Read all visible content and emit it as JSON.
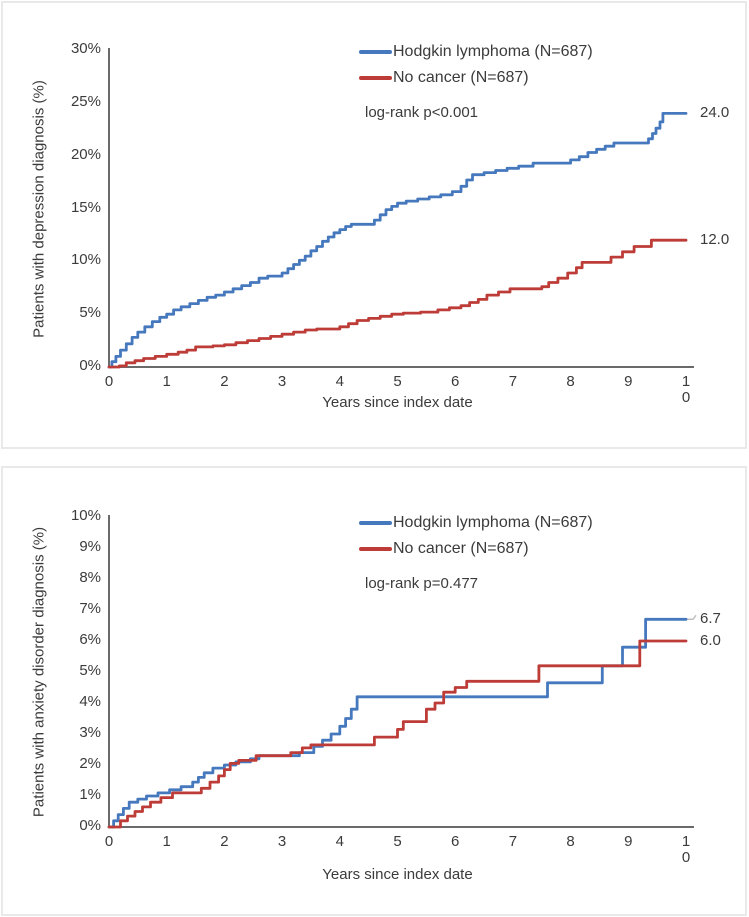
{
  "colors": {
    "hl_blue": "#4678BE",
    "nc_red": "#BE3C37",
    "axis_gray": "#6a6a6a",
    "text_gray": "#3b3b3b",
    "leader_gray": "#bfbfbf",
    "panel_border": "#e9e9e9"
  },
  "chart_data": [
    {
      "type": "line",
      "step": true,
      "ylabel": "Patients with depression diagnosis (%)",
      "xlabel": "Years since index date",
      "xlim": [
        0,
        10
      ],
      "ylim": [
        0,
        30
      ],
      "xticks": [
        "0",
        "1",
        "2",
        "3",
        "4",
        "5",
        "6",
        "7",
        "8",
        "9",
        "10"
      ],
      "ytick_values": [
        0,
        5,
        10,
        15,
        20,
        25,
        30
      ],
      "yticks": [
        "0%",
        "5%",
        "10%",
        "15%",
        "20%",
        "25%",
        "30%"
      ],
      "legend": [
        {
          "label": "Hodgkin lymphoma (N=687)"
        },
        {
          "label": "No cancer (N=687)"
        }
      ],
      "annotation": "log-rank p<0.001",
      "grid": false,
      "legend_position": "top-right-inside",
      "series": [
        {
          "name": "Hodgkin lymphoma (N=687)",
          "color_key": "hl_blue",
          "end_label": "24.0",
          "leader": false,
          "points": [
            [
              0,
              0
            ],
            [
              0.05,
              0.5
            ],
            [
              0.12,
              1.0
            ],
            [
              0.2,
              1.6
            ],
            [
              0.3,
              2.2
            ],
            [
              0.4,
              2.8
            ],
            [
              0.5,
              3.3
            ],
            [
              0.62,
              3.8
            ],
            [
              0.75,
              4.3
            ],
            [
              0.88,
              4.7
            ],
            [
              1.0,
              5.0
            ],
            [
              1.12,
              5.4
            ],
            [
              1.25,
              5.7
            ],
            [
              1.4,
              6.0
            ],
            [
              1.55,
              6.3
            ],
            [
              1.7,
              6.6
            ],
            [
              1.85,
              6.8
            ],
            [
              2.0,
              7.1
            ],
            [
              2.15,
              7.4
            ],
            [
              2.3,
              7.7
            ],
            [
              2.45,
              8.0
            ],
            [
              2.6,
              8.4
            ],
            [
              2.75,
              8.6
            ],
            [
              3.0,
              8.9
            ],
            [
              3.1,
              9.3
            ],
            [
              3.2,
              9.7
            ],
            [
              3.3,
              10.1
            ],
            [
              3.4,
              10.5
            ],
            [
              3.5,
              11.0
            ],
            [
              3.6,
              11.4
            ],
            [
              3.7,
              11.9
            ],
            [
              3.8,
              12.3
            ],
            [
              3.9,
              12.7
            ],
            [
              4.0,
              13.0
            ],
            [
              4.1,
              13.3
            ],
            [
              4.2,
              13.5
            ],
            [
              4.6,
              13.9
            ],
            [
              4.7,
              14.4
            ],
            [
              4.8,
              14.9
            ],
            [
              4.9,
              15.2
            ],
            [
              5.0,
              15.5
            ],
            [
              5.15,
              15.7
            ],
            [
              5.35,
              15.9
            ],
            [
              5.55,
              16.1
            ],
            [
              5.75,
              16.3
            ],
            [
              5.95,
              16.6
            ],
            [
              6.1,
              17.1
            ],
            [
              6.2,
              17.7
            ],
            [
              6.3,
              18.2
            ],
            [
              6.5,
              18.4
            ],
            [
              6.7,
              18.6
            ],
            [
              6.9,
              18.8
            ],
            [
              7.1,
              19.0
            ],
            [
              7.35,
              19.3
            ],
            [
              8.0,
              19.6
            ],
            [
              8.15,
              19.9
            ],
            [
              8.3,
              20.3
            ],
            [
              8.45,
              20.6
            ],
            [
              8.6,
              20.9
            ],
            [
              8.75,
              21.2
            ],
            [
              9.35,
              21.6
            ],
            [
              9.42,
              22.1
            ],
            [
              9.48,
              22.6
            ],
            [
              9.55,
              23.2
            ],
            [
              9.6,
              24.0
            ],
            [
              10,
              24.0
            ]
          ]
        },
        {
          "name": "No cancer (N=687)",
          "color_key": "nc_red",
          "end_label": "12.0",
          "leader": false,
          "points": [
            [
              0,
              0
            ],
            [
              0.18,
              0.1
            ],
            [
              0.3,
              0.4
            ],
            [
              0.45,
              0.6
            ],
            [
              0.6,
              0.8
            ],
            [
              0.8,
              1.0
            ],
            [
              1.0,
              1.2
            ],
            [
              1.2,
              1.4
            ],
            [
              1.35,
              1.6
            ],
            [
              1.5,
              1.9
            ],
            [
              1.8,
              2.0
            ],
            [
              2.0,
              2.1
            ],
            [
              2.2,
              2.3
            ],
            [
              2.4,
              2.5
            ],
            [
              2.6,
              2.7
            ],
            [
              2.8,
              2.9
            ],
            [
              3.0,
              3.1
            ],
            [
              3.2,
              3.3
            ],
            [
              3.4,
              3.5
            ],
            [
              3.6,
              3.6
            ],
            [
              4.0,
              3.8
            ],
            [
              4.15,
              4.1
            ],
            [
              4.3,
              4.4
            ],
            [
              4.5,
              4.6
            ],
            [
              4.7,
              4.8
            ],
            [
              4.9,
              5.0
            ],
            [
              5.1,
              5.1
            ],
            [
              5.4,
              5.2
            ],
            [
              5.7,
              5.4
            ],
            [
              5.9,
              5.6
            ],
            [
              6.1,
              5.8
            ],
            [
              6.25,
              6.1
            ],
            [
              6.4,
              6.4
            ],
            [
              6.55,
              6.8
            ],
            [
              6.75,
              7.1
            ],
            [
              6.95,
              7.4
            ],
            [
              7.5,
              7.6
            ],
            [
              7.62,
              8.0
            ],
            [
              7.78,
              8.4
            ],
            [
              7.95,
              8.9
            ],
            [
              8.1,
              9.4
            ],
            [
              8.2,
              9.9
            ],
            [
              8.7,
              10.4
            ],
            [
              8.9,
              10.9
            ],
            [
              9.1,
              11.4
            ],
            [
              9.4,
              12.0
            ],
            [
              10,
              12.0
            ]
          ]
        }
      ]
    },
    {
      "type": "line",
      "step": true,
      "ylabel": "Patients with anxiety disorder diagnosis (%)",
      "xlabel": "Years since index date",
      "xlim": [
        0,
        10
      ],
      "ylim": [
        0,
        10
      ],
      "xticks": [
        "0",
        "1",
        "2",
        "3",
        "4",
        "5",
        "6",
        "7",
        "8",
        "9",
        "10"
      ],
      "ytick_values": [
        0,
        1,
        2,
        3,
        4,
        5,
        6,
        7,
        8,
        9,
        10
      ],
      "yticks": [
        "0%",
        "1%",
        "2%",
        "3%",
        "4%",
        "5%",
        "6%",
        "7%",
        "8%",
        "9%",
        "10%"
      ],
      "legend": [
        {
          "label": "Hodgkin lymphoma (N=687)"
        },
        {
          "label": "No cancer (N=687)"
        }
      ],
      "annotation": "log-rank p=0.477",
      "grid": false,
      "legend_position": "top-right-inside",
      "series": [
        {
          "name": "Hodgkin lymphoma (N=687)",
          "color_key": "hl_blue",
          "end_label": "6.7",
          "leader": true,
          "points": [
            [
              0,
              0
            ],
            [
              0.08,
              0.2
            ],
            [
              0.16,
              0.4
            ],
            [
              0.25,
              0.6
            ],
            [
              0.35,
              0.8
            ],
            [
              0.5,
              0.9
            ],
            [
              0.65,
              1.0
            ],
            [
              0.85,
              1.1
            ],
            [
              1.05,
              1.2
            ],
            [
              1.25,
              1.3
            ],
            [
              1.45,
              1.45
            ],
            [
              1.55,
              1.6
            ],
            [
              1.65,
              1.75
            ],
            [
              1.8,
              1.9
            ],
            [
              2.0,
              2.0
            ],
            [
              2.2,
              2.1
            ],
            [
              2.45,
              2.2
            ],
            [
              2.6,
              2.3
            ],
            [
              3.3,
              2.4
            ],
            [
              3.55,
              2.6
            ],
            [
              3.7,
              2.8
            ],
            [
              3.85,
              3.0
            ],
            [
              4.0,
              3.25
            ],
            [
              4.1,
              3.5
            ],
            [
              4.2,
              3.8
            ],
            [
              4.3,
              4.2
            ],
            [
              7.6,
              4.65
            ],
            [
              8.55,
              5.2
            ],
            [
              8.9,
              5.8
            ],
            [
              9.3,
              6.7
            ],
            [
              10,
              6.7
            ]
          ]
        },
        {
          "name": "No cancer (N=687)",
          "color_key": "nc_red",
          "end_label": "6.0",
          "leader": false,
          "points": [
            [
              0,
              0
            ],
            [
              0.2,
              0.2
            ],
            [
              0.32,
              0.35
            ],
            [
              0.45,
              0.5
            ],
            [
              0.58,
              0.65
            ],
            [
              0.72,
              0.8
            ],
            [
              0.9,
              0.95
            ],
            [
              1.1,
              1.1
            ],
            [
              1.6,
              1.25
            ],
            [
              1.75,
              1.45
            ],
            [
              1.9,
              1.65
            ],
            [
              2.0,
              1.85
            ],
            [
              2.1,
              2.05
            ],
            [
              2.25,
              2.15
            ],
            [
              2.55,
              2.3
            ],
            [
              3.15,
              2.4
            ],
            [
              3.35,
              2.55
            ],
            [
              3.5,
              2.65
            ],
            [
              4.6,
              2.9
            ],
            [
              5.0,
              3.15
            ],
            [
              5.1,
              3.4
            ],
            [
              5.5,
              3.8
            ],
            [
              5.65,
              4.0
            ],
            [
              5.8,
              4.35
            ],
            [
              6.0,
              4.5
            ],
            [
              6.2,
              4.7
            ],
            [
              7.45,
              5.2
            ],
            [
              9.2,
              6.0
            ],
            [
              10,
              6.0
            ]
          ]
        }
      ]
    }
  ]
}
